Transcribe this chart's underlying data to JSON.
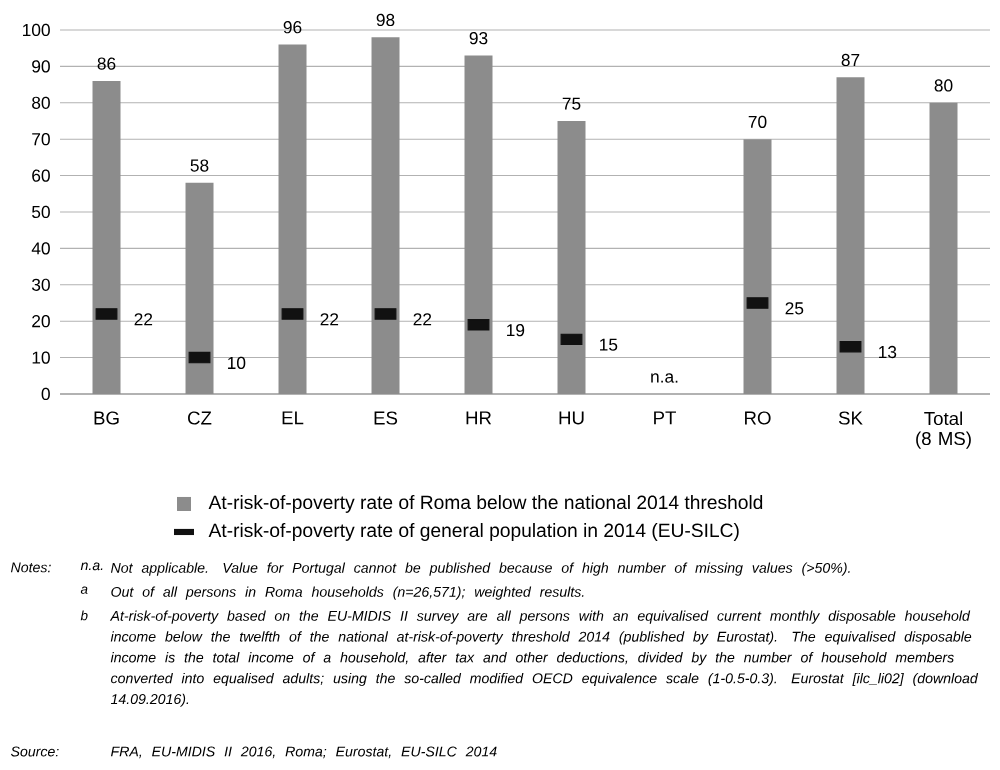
{
  "chart_data": {
    "type": "bar",
    "categories": [
      "BG",
      "CZ",
      "EL",
      "ES",
      "HR",
      "HU",
      "PT",
      "RO",
      "SK",
      "Total (8 MS)"
    ],
    "series": [
      {
        "name": "At-risk-of-poverty rate of Roma below the national 2014 threshold",
        "color": "#8c8c8c",
        "values": [
          86,
          58,
          96,
          98,
          93,
          75,
          null,
          70,
          87,
          80
        ],
        "value_labels": [
          "86",
          "58",
          "96",
          "98",
          "93",
          "75",
          "n.a.",
          "70",
          "87",
          "80"
        ]
      },
      {
        "name": "At-risk-of-poverty rate of general population in 2014 (EU-SILC)",
        "type": "scatter",
        "color": "#111111",
        "values": [
          22,
          10,
          22,
          22,
          19,
          15,
          null,
          25,
          13,
          null
        ],
        "value_labels": [
          "22",
          "10",
          "22",
          "22",
          "19",
          "15",
          null,
          "25",
          "13",
          null
        ]
      }
    ],
    "ylim": [
      0,
      100
    ],
    "yticks": [
      0,
      10,
      20,
      30,
      40,
      50,
      60,
      70,
      80,
      90,
      100
    ],
    "grid": "y",
    "legend": "bottom",
    "annotations": [
      "Notes:",
      "n.a.",
      "Not applicable. Value for Portugal cannot be published because of high number of missing values (>50%).",
      "a",
      "Out of all persons in Roma households (n=26,571); weighted results.",
      "b",
      "At-risk-of-poverty based on the EU-MIDIS II survey are all persons with an equivalised current monthly disposable household income below the twelfth of the national at-risk-of-poverty threshold 2014 (published by Eurostat). The equivalised disposable income is the total income of a household, after tax and other deductions, divided by the number of household members converted into equalised adults; using the so-called modified OECD equivalence scale (1-0.5-0.3). Eurostat [ilc_li02] (download 14.09.2016).",
      "Source:",
      "FRA, EU-MIDIS II 2016, Roma; Eurostat, EU-SILC 2014"
    ]
  }
}
